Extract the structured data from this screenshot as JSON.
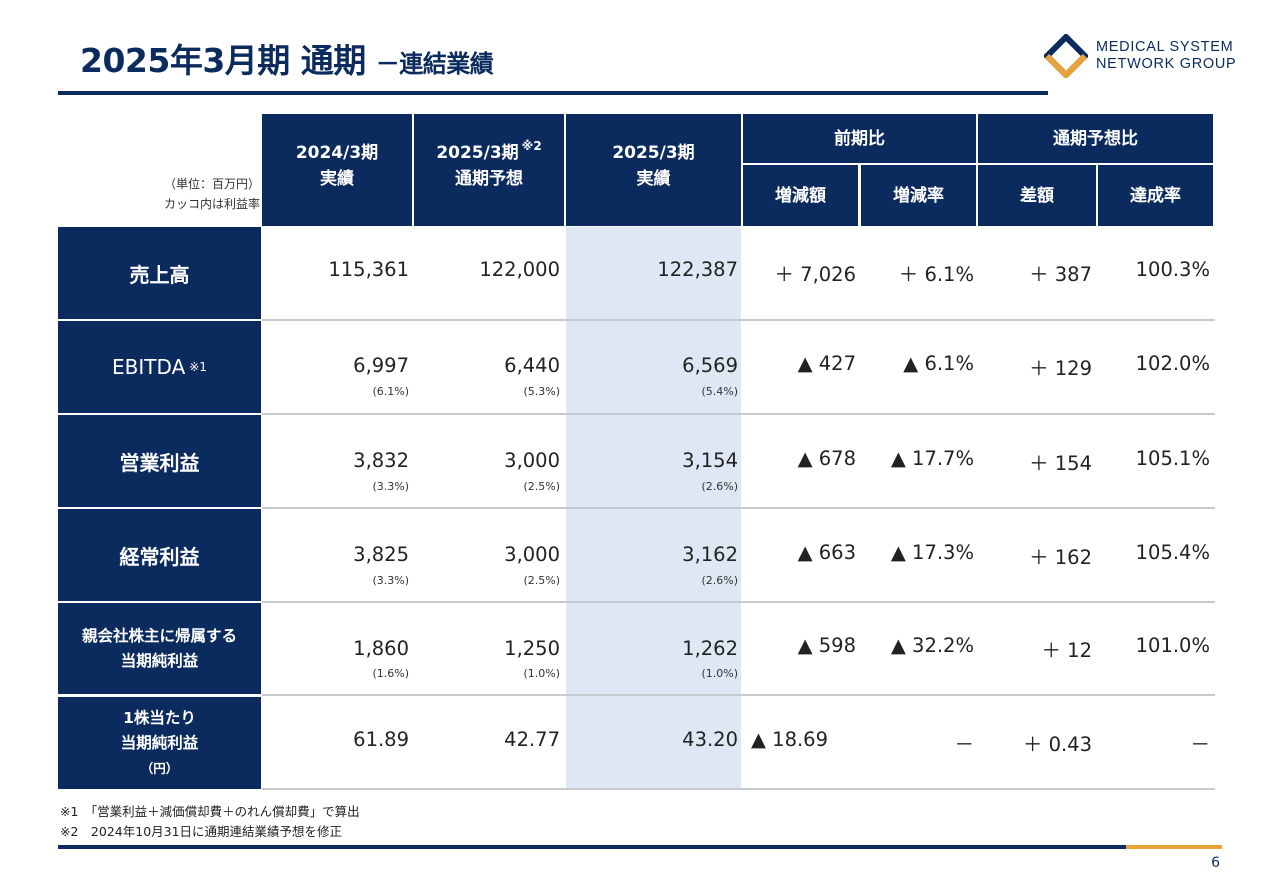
{
  "header": {
    "title": "2025年3月期 通期",
    "subtitle": "－連結業績"
  },
  "logo": {
    "line1": "MEDICAL SYSTEM",
    "line2": "NETWORK GROUP",
    "colors": {
      "navy": "#0b2a5e",
      "gold": "#e8a33c"
    }
  },
  "unit_note": {
    "line1": "（単位：百万円）",
    "line2": "カッコ内は利益率"
  },
  "columns": {
    "prev_actual": {
      "line1": "2024/3期",
      "line2": "実績"
    },
    "forecast": {
      "line1": "2025/3期",
      "note": "※2",
      "line2": "通期予想"
    },
    "actual": {
      "line1": "2025/3期",
      "line2": "実績"
    },
    "yoy_group": "前期比",
    "yoy_amount": "増減額",
    "yoy_rate": "増減率",
    "fc_group": "通期予想比",
    "fc_diff": "差額",
    "fc_rate": "達成率"
  },
  "rows": [
    {
      "label": "売上高",
      "prev": "115,361",
      "prev_margin": "",
      "forecast": "122,000",
      "forecast_margin": "",
      "actual": "122,387",
      "actual_margin": "",
      "yoy_amount": "＋ 7,026",
      "yoy_rate": "＋ 6.1%",
      "fc_diff": "＋ 387",
      "fc_rate": "100.3%"
    },
    {
      "label": "EBITDA",
      "label_note": "※1",
      "prev": "6,997",
      "prev_margin": "(6.1%)",
      "forecast": "6,440",
      "forecast_margin": "(5.3%)",
      "actual": "6,569",
      "actual_margin": "(5.4%)",
      "yoy_amount": "▲ 427",
      "yoy_rate": "▲ 6.1%",
      "fc_diff": "＋ 129",
      "fc_rate": "102.0%"
    },
    {
      "label": "営業利益",
      "prev": "3,832",
      "prev_margin": "(3.3%)",
      "forecast": "3,000",
      "forecast_margin": "(2.5%)",
      "actual": "3,154",
      "actual_margin": "(2.6%)",
      "yoy_amount": "▲ 678",
      "yoy_rate": "▲ 17.7%",
      "fc_diff": "＋ 154",
      "fc_rate": "105.1%"
    },
    {
      "label": "経常利益",
      "prev": "3,825",
      "prev_margin": "(3.3%)",
      "forecast": "3,000",
      "forecast_margin": "(2.5%)",
      "actual": "3,162",
      "actual_margin": "(2.6%)",
      "yoy_amount": "▲ 663",
      "yoy_rate": "▲ 17.3%",
      "fc_diff": "＋ 162",
      "fc_rate": "105.4%"
    },
    {
      "label_line1": "親会社株主に帰属する",
      "label_line2": "当期純利益",
      "prev": "1,860",
      "prev_margin": "(1.6%)",
      "forecast": "1,250",
      "forecast_margin": "(1.0%)",
      "actual": "1,262",
      "actual_margin": "(1.0%)",
      "yoy_amount": "▲ 598",
      "yoy_rate": "▲ 32.2%",
      "fc_diff": "＋ 12",
      "fc_rate": "101.0%"
    },
    {
      "label_line1": "1株当たり",
      "label_line2": "当期純利益",
      "label_line3": "（円）",
      "prev": "61.89",
      "prev_margin": "",
      "forecast": "42.77",
      "forecast_margin": "",
      "actual": "43.20",
      "actual_margin": "",
      "yoy_amount": "▲ 18.69",
      "yoy_rate": "－",
      "fc_diff": "＋ 0.43",
      "fc_rate": "－"
    }
  ],
  "footnotes": [
    "※1　「営業利益＋減価償却費＋のれん償却費」で算出",
    "※2　2024年10月31日に通期連結業績予想を修正"
  ],
  "page_number": "6"
}
